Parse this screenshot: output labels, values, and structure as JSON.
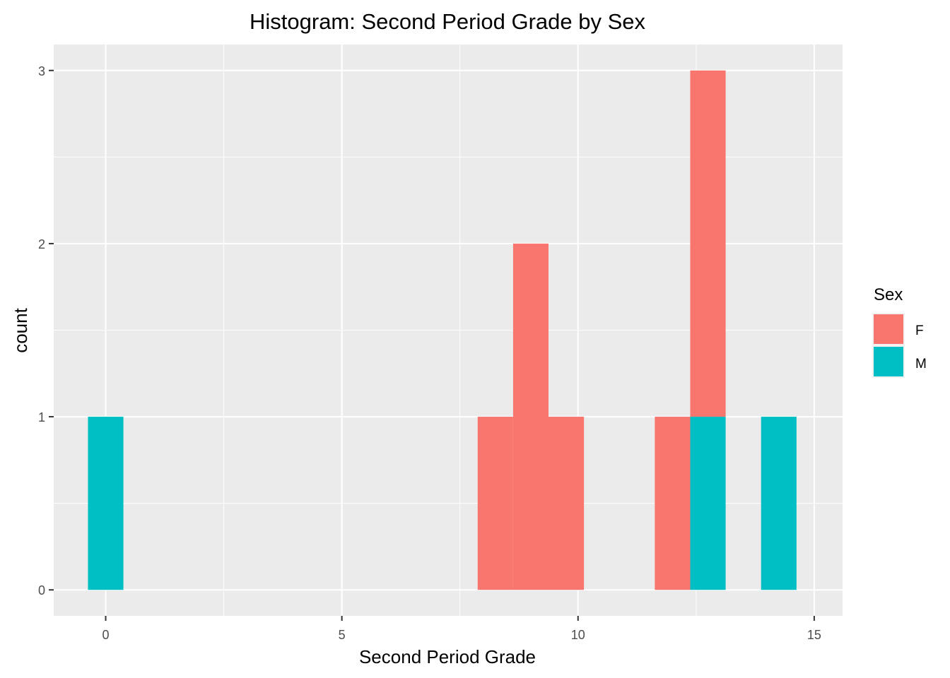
{
  "chart_data": {
    "type": "bar",
    "subtype": "stacked-histogram",
    "title": "Histogram: Second Period Grade by Sex",
    "xlabel": "Second Period Grade",
    "ylabel": "count",
    "xlim": [
      -1.1,
      15.6
    ],
    "ylim": [
      -0.15,
      3.15
    ],
    "x_ticks": [
      0,
      5,
      10,
      15
    ],
    "x_tick_labels": [
      "0",
      "5",
      "10",
      "15"
    ],
    "y_ticks": [
      0,
      1,
      2,
      3
    ],
    "y_tick_labels": [
      "0",
      "1",
      "2",
      "3"
    ],
    "grid": true,
    "bin_width": 0.75,
    "legend": {
      "title": "Sex",
      "position": "right",
      "entries": [
        {
          "label": "F",
          "color": "#F8766D"
        },
        {
          "label": "M",
          "color": "#00BFC4"
        }
      ]
    },
    "stack_order": [
      "M",
      "F"
    ],
    "series": [
      {
        "name": "F",
        "color": "#F8766D",
        "bins": [
          {
            "x": 8.25,
            "count": 1
          },
          {
            "x": 9.0,
            "count": 2
          },
          {
            "x": 9.75,
            "count": 1
          },
          {
            "x": 12.0,
            "count": 1
          },
          {
            "x": 12.75,
            "count": 2
          }
        ]
      },
      {
        "name": "M",
        "color": "#00BFC4",
        "bins": [
          {
            "x": 0.0,
            "count": 1
          },
          {
            "x": 12.75,
            "count": 1
          },
          {
            "x": 14.25,
            "count": 1
          }
        ]
      }
    ]
  }
}
